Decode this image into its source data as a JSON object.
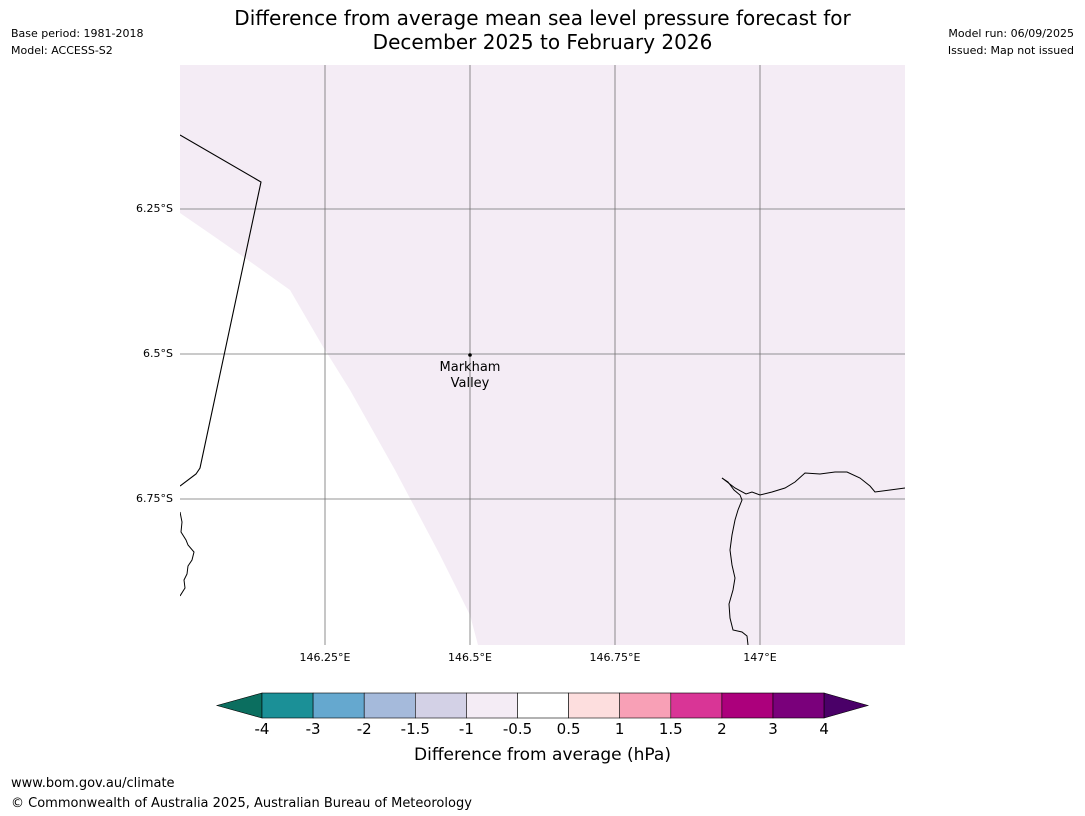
{
  "header": {
    "title_line1": "Difference from average mean sea level pressure forecast for",
    "title_line2": "December 2025 to February 2026",
    "base_period": "Base period: 1981-2018",
    "model": "Model: ACCESS-S2",
    "model_run": "Model run: 06/09/2025",
    "issued": "Issued: Map not issued"
  },
  "map": {
    "latitude_labels": [
      "6.25°S",
      "6.5°S",
      "6.75°S"
    ],
    "longitude_labels": [
      "146.25°E",
      "146.5°E",
      "146.75°E",
      "147°E"
    ],
    "place": {
      "line1": "Markham",
      "line2": "Valley"
    },
    "shading_color": "#f4ecf5",
    "grid_color": "#707070"
  },
  "colorbar": {
    "title": "Difference from average (hPa)",
    "ticks": [
      "-4",
      "-3",
      "-2",
      "-1.5",
      "-1",
      "-0.5",
      "0.5",
      "1",
      "1.5",
      "2",
      "3",
      "4"
    ],
    "colors": [
      "#0b6e5f",
      "#1b9097",
      "#65a8cf",
      "#a5badb",
      "#d3d1e6",
      "#f4ecf5",
      "#ffffff",
      "#fddede",
      "#f8a0b6",
      "#d93596",
      "#ac007c",
      "#7a007b",
      "#4a0068"
    ]
  },
  "footer": {
    "website": "www.bom.gov.au/climate",
    "copyright": "© Commonwealth of Australia 2025, Australian Bureau of Meteorology"
  }
}
